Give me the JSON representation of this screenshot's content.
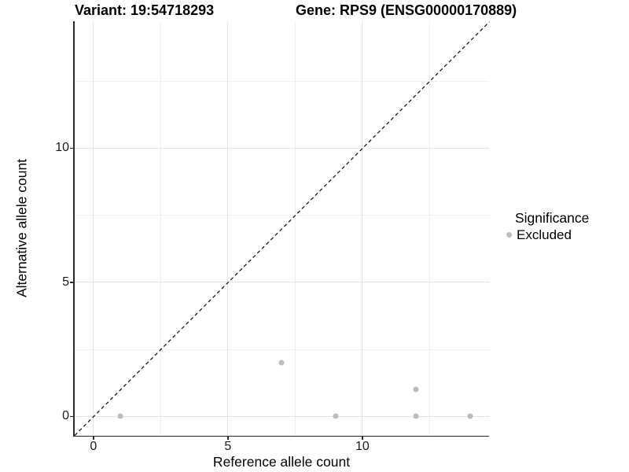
{
  "titles": {
    "left": "Variant: 19:54718293",
    "right": "Gene: RPS9 (ENSG00000170889)"
  },
  "legend": {
    "title": "Significance",
    "items": [
      {
        "label": "Excluded",
        "color": "#bdbdbd"
      }
    ]
  },
  "colors": {
    "axis_line": "#2b2b2b",
    "grid_major": "#e5e5e5",
    "grid_minor": "#f1f1f1",
    "point": "#bdbdbd",
    "reference_line": "#1a1a1a",
    "text": "#000000"
  },
  "chart_data": {
    "type": "scatter",
    "title": "Variant: 19:54718293 / Gene: RPS9 (ENSG00000170889)",
    "xlabel": "Reference allele count",
    "ylabel": "Alternative allele count",
    "xlim": [
      -0.71,
      14.71
    ],
    "ylim": [
      -0.71,
      14.73
    ],
    "x_ticks": [
      0,
      5,
      10
    ],
    "y_ticks": [
      0,
      5,
      10
    ],
    "x_minor_ticks": [
      2.5,
      7.5,
      12.5
    ],
    "y_minor_ticks": [
      2.5,
      7.5,
      12.5
    ],
    "grid": true,
    "legend_position": "right",
    "series": [
      {
        "name": "Excluded",
        "color": "#bdbdbd",
        "points": [
          [
            1,
            0
          ],
          [
            7,
            2
          ],
          [
            9,
            0
          ],
          [
            12,
            0
          ],
          [
            12,
            1
          ],
          [
            14,
            0
          ]
        ]
      }
    ],
    "reference_line": {
      "kind": "identity",
      "slope": 1,
      "intercept": 0,
      "style": "dashed",
      "color": "#1a1a1a"
    }
  }
}
